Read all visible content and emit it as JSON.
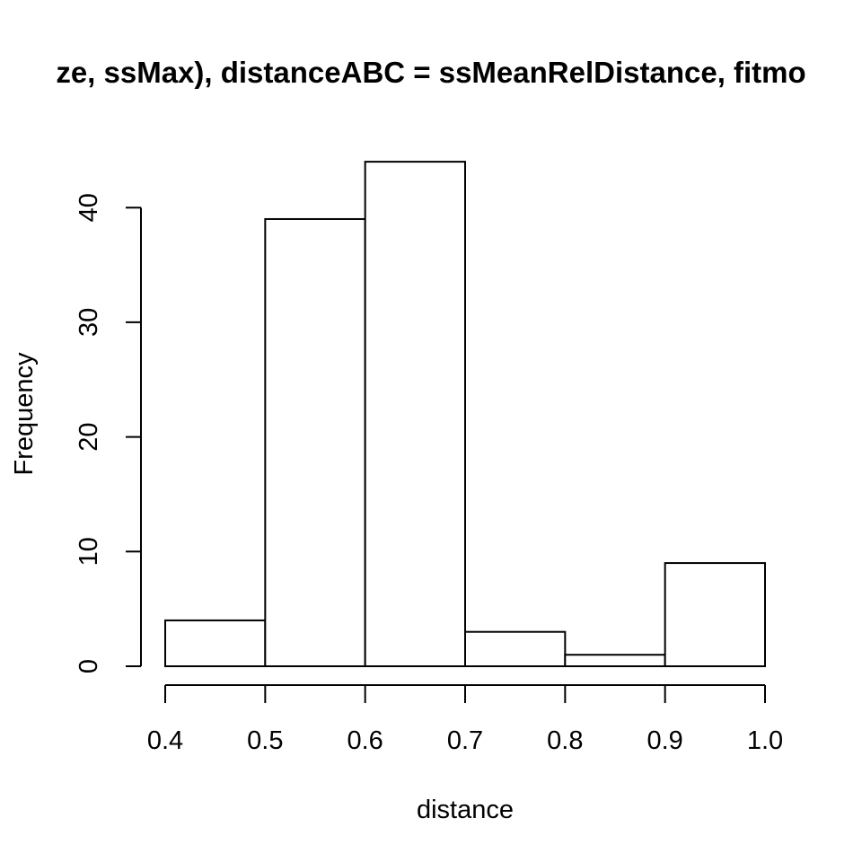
{
  "chart_data": {
    "type": "bar",
    "title": "ze, ssMax), distanceABC = ssMeanRelDistance, fitmo",
    "xlabel": "distance",
    "ylabel": "Frequency",
    "bin_edges": [
      0.4,
      0.5,
      0.6,
      0.7,
      0.8,
      0.9,
      1.0
    ],
    "categories": [
      "0.4-0.5",
      "0.5-0.6",
      "0.6-0.7",
      "0.7-0.8",
      "0.8-0.9",
      "0.9-1.0"
    ],
    "values": [
      4,
      39,
      44,
      3,
      1,
      9
    ],
    "x_ticks": [
      "0.4",
      "0.5",
      "0.6",
      "0.7",
      "0.8",
      "0.9",
      "1.0"
    ],
    "y_ticks": [
      "0",
      "10",
      "20",
      "30",
      "40"
    ],
    "xlim": [
      0.4,
      1.0
    ],
    "ylim": [
      0,
      44
    ],
    "grid": false,
    "colors": {
      "bar_fill": "#ffffff",
      "bar_stroke": "#000000",
      "text": "#000000"
    }
  }
}
